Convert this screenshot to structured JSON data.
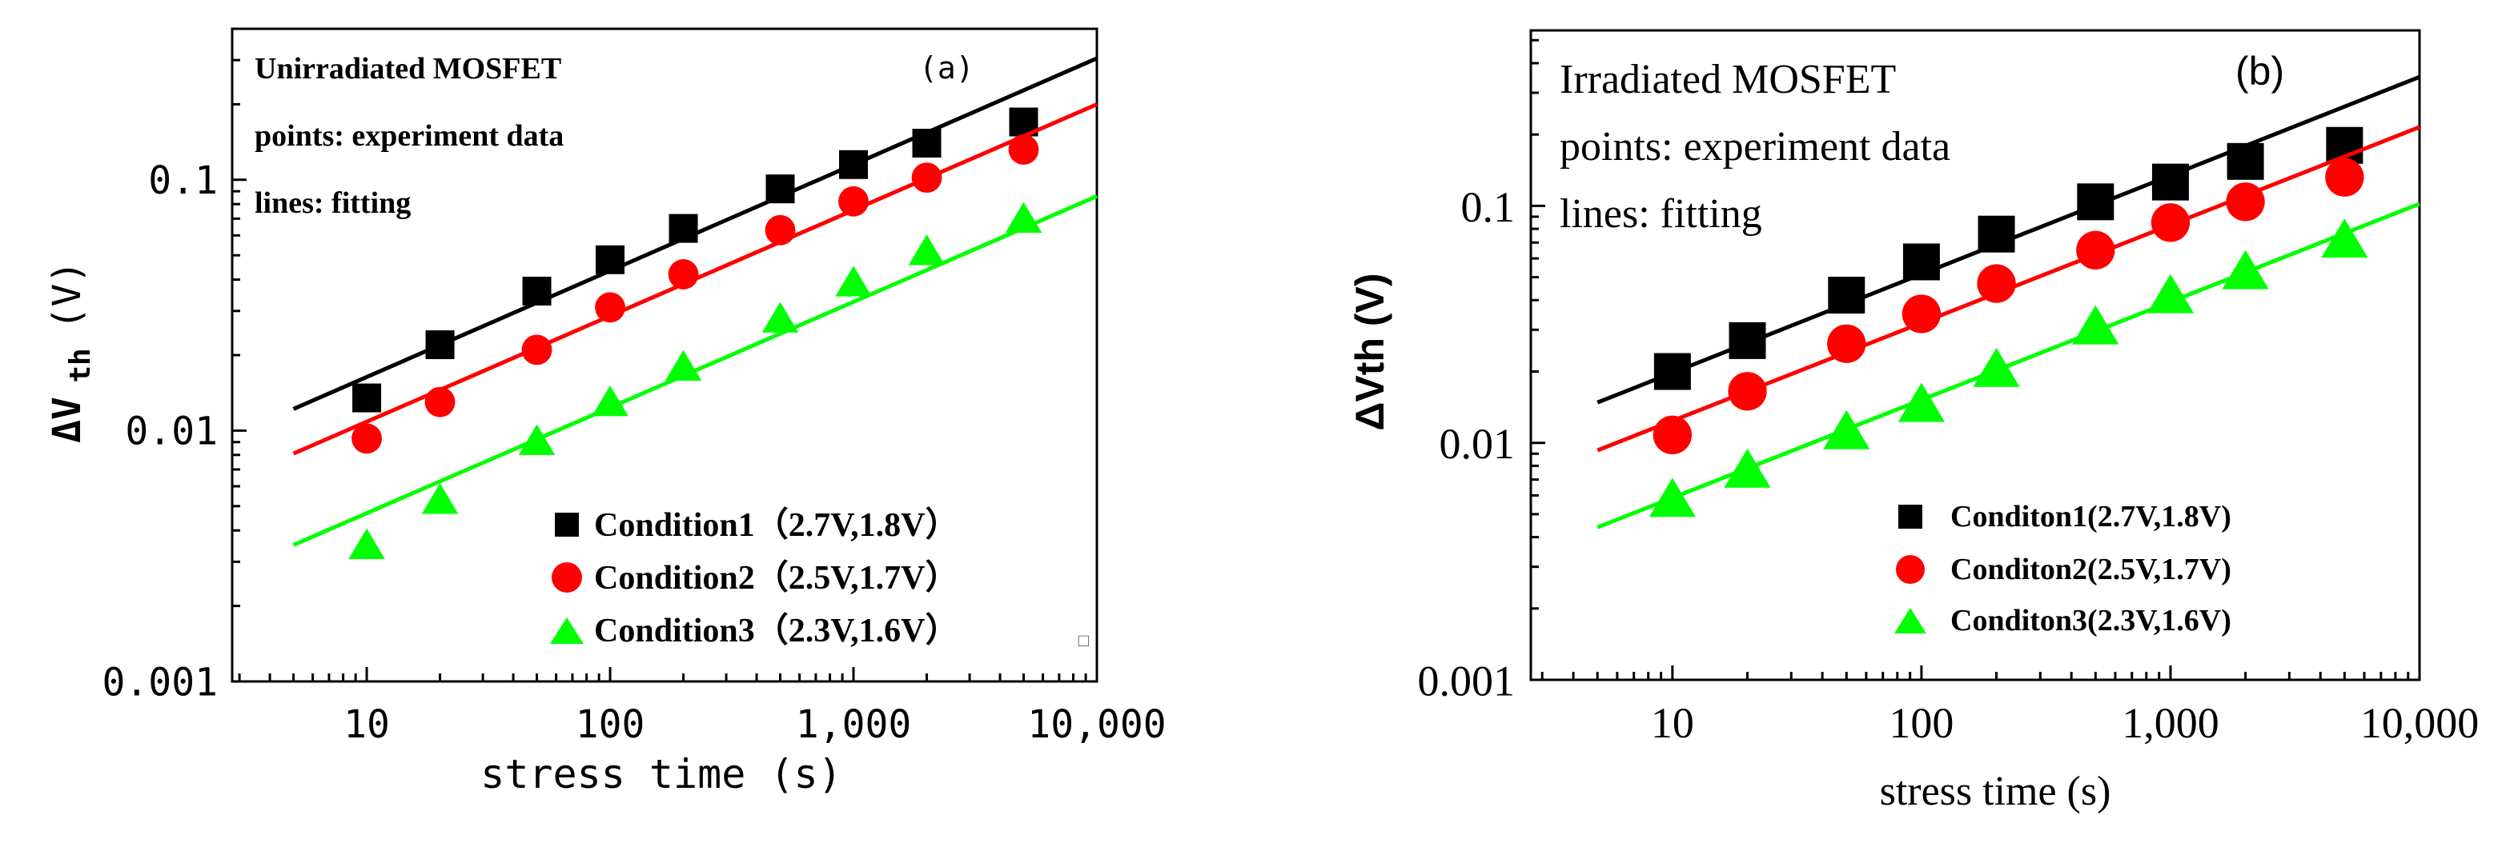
{
  "colors": {
    "condition1": "#000000",
    "condition2": "#ff0000",
    "condition3": "#00ff00",
    "axis": "#000000",
    "background": "#ffffff"
  },
  "chart_data": [
    {
      "type": "scatter",
      "panel": "a",
      "panel_label": "(a)",
      "title": "",
      "xlabel": "stress time (s)",
      "ylabel_main": "ΔV",
      "ylabel_sub": "th",
      "ylabel_unit": "(V)",
      "xscale": "log",
      "yscale": "log",
      "xlim": [
        2.8,
        10000
      ],
      "ylim": [
        0.001,
        0.4
      ],
      "x_ticks": [
        10,
        100,
        1000,
        10000
      ],
      "x_tick_labels": [
        "10",
        "100",
        "1,000",
        "10,000"
      ],
      "y_ticks": [
        0.001,
        0.01,
        0.1
      ],
      "y_tick_labels": [
        "0.001",
        "0.01",
        "0.1"
      ],
      "grid": false,
      "legend_position": "bottom-right",
      "annotations": [
        "Unirradiated MOSFET",
        "points: experiment data",
        "lines: fitting"
      ],
      "extra_mark": "□",
      "series": [
        {
          "name": "Condition1 (2.7V,1.8V)",
          "legend_label": "Condition1（2.7V,1.8V）",
          "marker": "square",
          "color": "#000000",
          "x": [
            10,
            20,
            50,
            100,
            200,
            500,
            1000,
            2000,
            5000
          ],
          "y": [
            0.0135,
            0.022,
            0.036,
            0.048,
            0.064,
            0.092,
            0.115,
            0.14,
            0.17
          ],
          "fit_x": [
            5,
            10000
          ],
          "fit_y": [
            0.0122,
            0.305
          ]
        },
        {
          "name": "Condition2 (2.5V,1.7V)",
          "legend_label": "Condition2（2.5V,1.7V）",
          "marker": "circle",
          "color": "#ff0000",
          "x": [
            10,
            20,
            50,
            100,
            200,
            500,
            1000,
            2000,
            5000
          ],
          "y": [
            0.0093,
            0.013,
            0.021,
            0.031,
            0.042,
            0.063,
            0.082,
            0.102,
            0.132
          ],
          "fit_x": [
            5,
            10000
          ],
          "fit_y": [
            0.0081,
            0.2
          ]
        },
        {
          "name": "Condition3 (2.3V,1.6V)",
          "legend_label": "Condition3（2.3V,1.6V）",
          "marker": "triangle",
          "color": "#00ff00",
          "x": [
            10,
            20,
            50,
            100,
            200,
            500,
            1000,
            2000,
            5000
          ],
          "y": [
            0.0035,
            0.0053,
            0.0091,
            0.013,
            0.018,
            0.028,
            0.039,
            0.052,
            0.07
          ],
          "fit_x": [
            5,
            10000
          ],
          "fit_y": [
            0.0035,
            0.086
          ]
        }
      ]
    },
    {
      "type": "scatter",
      "panel": "b",
      "panel_label": "(b)",
      "title": "",
      "xlabel": "stress time (s)",
      "ylabel_main": "ΔVth (V)",
      "xscale": "log",
      "yscale": "log",
      "xlim": [
        2.7,
        10000
      ],
      "ylim": [
        0.001,
        0.55
      ],
      "x_ticks": [
        10,
        100,
        1000,
        10000
      ],
      "x_tick_labels": [
        "10",
        "100",
        "1,000",
        "10,000"
      ],
      "y_ticks": [
        0.001,
        0.01,
        0.1
      ],
      "y_tick_labels": [
        "0.001",
        "0.01",
        "0.1"
      ],
      "grid": false,
      "legend_position": "bottom-right",
      "annotations": [
        "Irradiated MOSFET",
        "points: experiment data",
        "lines: fitting"
      ],
      "series": [
        {
          "name": "Conditon1(2.7V,1.8V)",
          "legend_label": "Conditon1(2.7V,1.8V)",
          "marker": "square",
          "color": "#000000",
          "x": [
            10,
            20,
            50,
            100,
            200,
            500,
            1000,
            2000,
            5000
          ],
          "y": [
            0.02,
            0.027,
            0.042,
            0.058,
            0.076,
            0.104,
            0.126,
            0.154,
            0.18
          ],
          "fit_x": [
            5,
            10000
          ],
          "fit_y": [
            0.0148,
            0.35
          ]
        },
        {
          "name": "Conditon2(2.5V,1.7V)",
          "legend_label": "Conditon2(2.5V,1.7V)",
          "marker": "circle",
          "color": "#ff0000",
          "x": [
            10,
            20,
            50,
            100,
            200,
            500,
            1000,
            2000,
            5000
          ],
          "y": [
            0.0108,
            0.0165,
            0.0262,
            0.035,
            0.047,
            0.065,
            0.085,
            0.104,
            0.132
          ],
          "fit_x": [
            5,
            10000
          ],
          "fit_y": [
            0.0093,
            0.215
          ]
        },
        {
          "name": "Conditon3(2.3V,1.6V)",
          "legend_label": "Conditon3(2.3V,1.6V)",
          "marker": "triangle",
          "color": "#00ff00",
          "x": [
            10,
            20,
            50,
            100,
            200,
            500,
            1000,
            2000,
            5000
          ],
          "y": [
            0.0058,
            0.0077,
            0.0112,
            0.0146,
            0.0205,
            0.031,
            0.042,
            0.053,
            0.072
          ],
          "fit_x": [
            5,
            10000
          ],
          "fit_y": [
            0.0044,
            0.102
          ]
        }
      ]
    }
  ]
}
